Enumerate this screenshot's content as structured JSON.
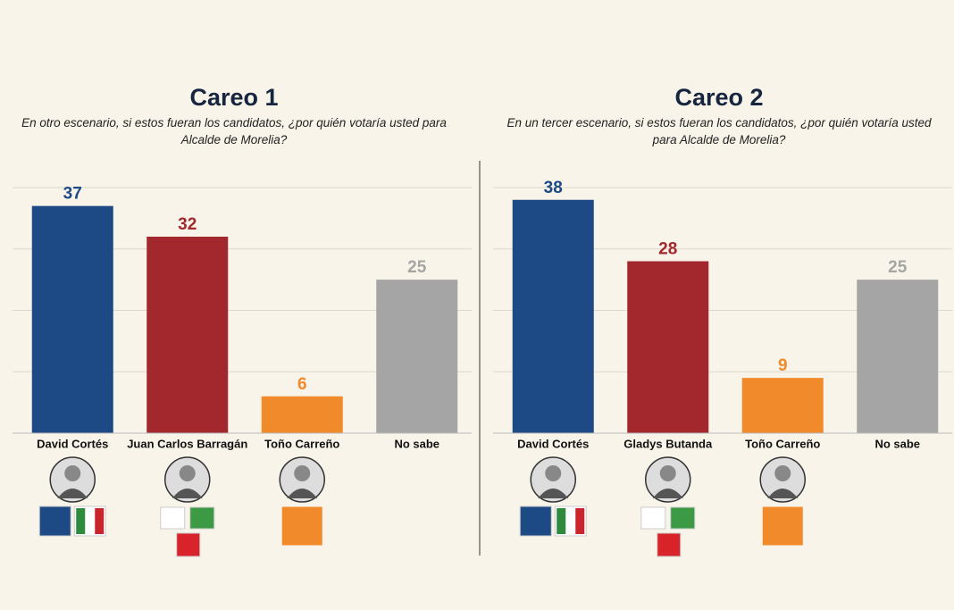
{
  "chart_data": [
    {
      "type": "bar",
      "title": "Careo 1",
      "subtitle": "En otro escenario, si estos fueran los candidatos, ¿por quién votaría usted para Alcalde de Morelia?",
      "categories": [
        "David Cortés",
        "Juan Carlos Barragán",
        "Toño Carreño",
        "No sabe"
      ],
      "values": [
        37,
        32,
        6,
        25
      ],
      "colors": [
        "#1d4a85",
        "#a3282d",
        "#f08a2b",
        "#a5a5a5"
      ],
      "ylim": [
        0,
        40
      ],
      "gridlines": [
        10,
        20,
        30,
        40
      ],
      "grid": true
    },
    {
      "type": "bar",
      "title": "Careo 2",
      "subtitle": "En un tercer escenario, si estos fueran los candidatos, ¿por quién votaría usted para Alcalde de Morelia?",
      "categories": [
        "David Cortés",
        "Gladys Butanda",
        "Toño Carreño",
        "No sabe"
      ],
      "values": [
        38,
        28,
        9,
        25
      ],
      "colors": [
        "#1d4a85",
        "#a3282d",
        "#f08a2b",
        "#a5a5a5"
      ],
      "ylim": [
        0,
        40
      ],
      "gridlines": [
        10,
        20,
        30,
        40
      ],
      "grid": true
    }
  ]
}
